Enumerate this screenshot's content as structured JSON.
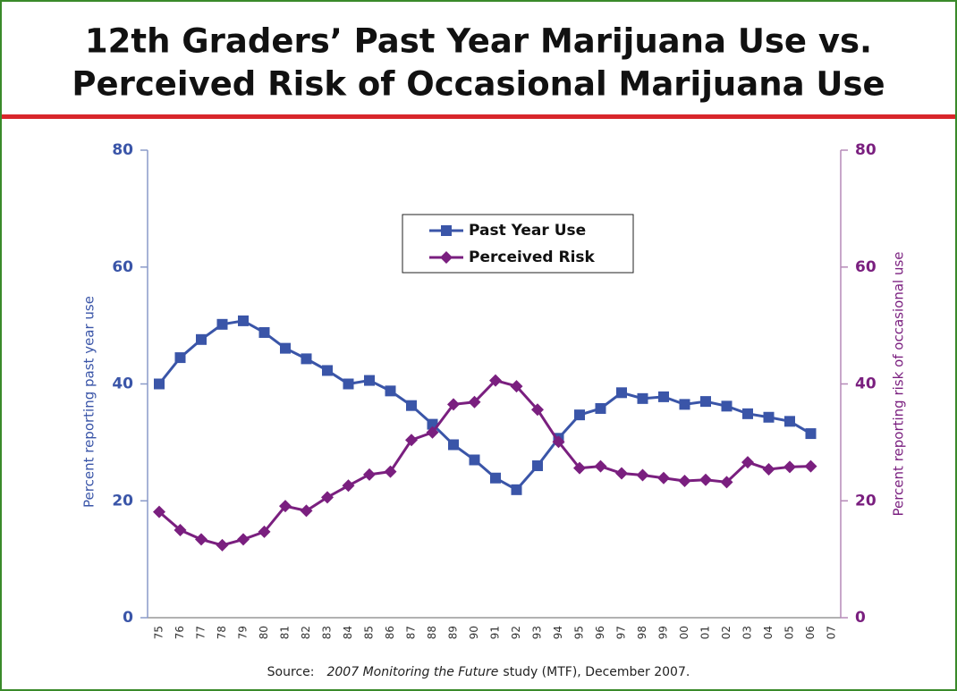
{
  "chart_data": {
    "type": "line",
    "title": [
      "12th Graders’ Past Year Marijuana Use vs.",
      "Perceived Risk of Occasional Marijuana Use"
    ],
    "source": {
      "prefix": "Source:",
      "italic": "2007 Monitoring the Future",
      "suffix": "study (MTF), December 2007."
    },
    "y_label": "Percent reporting past year use",
    "y2_label": "Percent reporting risk of occasional use",
    "categories": [
      "75",
      "76",
      "77",
      "78",
      "79",
      "80",
      "81",
      "82",
      "83",
      "84",
      "85",
      "86",
      "87",
      "88",
      "89",
      "90",
      "91",
      "92",
      "93",
      "94",
      "95",
      "96",
      "97",
      "98",
      "99",
      "00",
      "01",
      "02",
      "03",
      "04",
      "05",
      "06",
      "07"
    ],
    "series": [
      {
        "name": "Past Year Use",
        "color": "#3a55a8",
        "marker": "square",
        "values": [
          40.0,
          44.5,
          47.6,
          50.2,
          50.8,
          48.8,
          46.1,
          44.3,
          42.3,
          40.0,
          40.6,
          38.8,
          36.3,
          33.1,
          29.6,
          27.0,
          23.9,
          21.9,
          26.0,
          30.7,
          34.7,
          35.8,
          38.5,
          37.5,
          37.8,
          36.5,
          37.0,
          36.2,
          34.9,
          34.3,
          33.6,
          31.5,
          null
        ]
      },
      {
        "name": "Perceived Risk",
        "color": "#7a1f7f",
        "marker": "diamond",
        "axis": "y2",
        "values": [
          18.1,
          15.0,
          13.4,
          12.4,
          13.4,
          14.7,
          19.1,
          18.3,
          20.6,
          22.6,
          24.5,
          25.0,
          30.4,
          31.7,
          36.5,
          36.9,
          40.6,
          39.6,
          35.6,
          30.1,
          25.6,
          25.9,
          24.7,
          24.4,
          23.9,
          23.4,
          23.6,
          23.2,
          26.6,
          25.4,
          25.8,
          25.9,
          null
        ]
      }
    ],
    "ylim": [
      0,
      80
    ],
    "yticks": [
      0,
      20,
      40,
      60,
      80
    ],
    "y2lim": [
      0,
      80
    ],
    "y2ticks": [
      0,
      20,
      40,
      60,
      80
    ],
    "legend": "top-center"
  }
}
